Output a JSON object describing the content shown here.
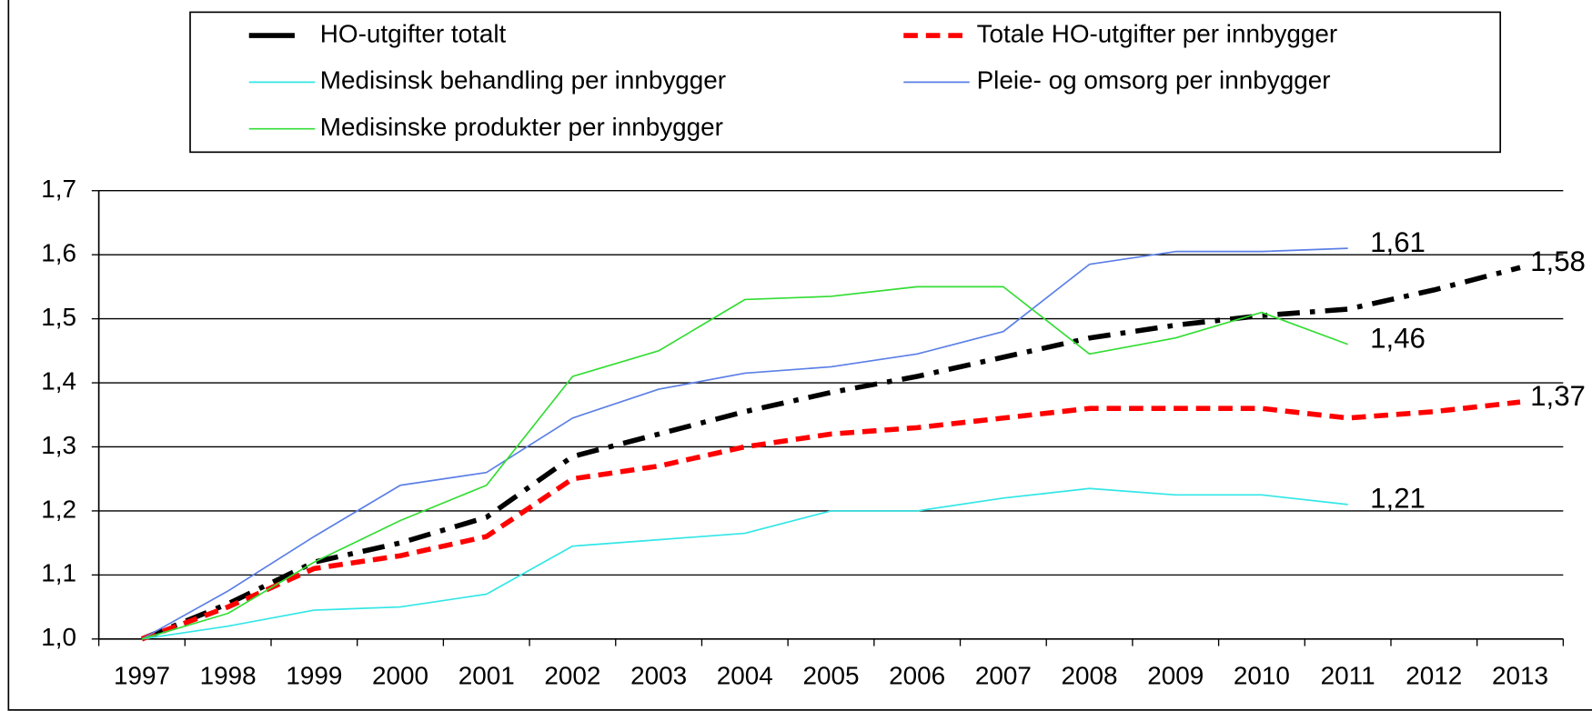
{
  "chart_data": {
    "type": "line",
    "categories": [
      "1997",
      "1998",
      "1999",
      "2000",
      "2001",
      "2002",
      "2003",
      "2004",
      "2005",
      "2006",
      "2007",
      "2008",
      "2009",
      "2010",
      "2011",
      "2012",
      "2013"
    ],
    "series": [
      {
        "name": "HO-utgifter totalt",
        "color": "#000000",
        "dash": "dashdot",
        "width": 5,
        "values": [
          1.0,
          1.055,
          1.12,
          1.15,
          1.19,
          1.285,
          1.32,
          1.355,
          1.385,
          1.41,
          1.44,
          1.47,
          1.49,
          1.505,
          1.515,
          1.545,
          1.58
        ],
        "value_labels": [
          null,
          null,
          null,
          null,
          null,
          null,
          null,
          null,
          null,
          null,
          null,
          null,
          null,
          null,
          null,
          null,
          "1,58"
        ]
      },
      {
        "name": "Totale HO-utgifter per innbygger",
        "color": "#ff0000",
        "dash": "dash",
        "width": 5,
        "values": [
          1.0,
          1.05,
          1.11,
          1.13,
          1.16,
          1.25,
          1.27,
          1.3,
          1.32,
          1.33,
          1.345,
          1.36,
          1.36,
          1.36,
          1.345,
          1.355,
          1.37
        ],
        "value_labels": [
          null,
          null,
          null,
          null,
          null,
          null,
          null,
          null,
          null,
          null,
          null,
          null,
          null,
          null,
          null,
          null,
          "1,37"
        ]
      },
      {
        "name": "Medisinsk behandling per innbygger",
        "color": "#33e6e6",
        "dash": "solid",
        "width": 1.5,
        "values": [
          1.0,
          1.02,
          1.045,
          1.05,
          1.07,
          1.145,
          1.155,
          1.165,
          1.2,
          1.2,
          1.22,
          1.235,
          1.225,
          1.225,
          1.21,
          null,
          null
        ],
        "value_labels": [
          null,
          null,
          null,
          null,
          null,
          null,
          null,
          null,
          null,
          null,
          null,
          null,
          null,
          null,
          "1,21",
          null,
          null
        ]
      },
      {
        "name": "Pleie- og omsorg per innbygger",
        "color": "#5b7fe6",
        "dash": "solid",
        "width": 1.5,
        "values": [
          1.0,
          1.075,
          1.16,
          1.24,
          1.26,
          1.345,
          1.39,
          1.415,
          1.425,
          1.445,
          1.48,
          1.585,
          1.605,
          1.605,
          1.61,
          null,
          null
        ],
        "value_labels": [
          null,
          null,
          null,
          null,
          null,
          null,
          null,
          null,
          null,
          null,
          null,
          null,
          null,
          null,
          "1,61",
          null,
          null
        ]
      },
      {
        "name": "Medisinske produkter per innbygger",
        "color": "#33dd33",
        "dash": "solid",
        "width": 1.5,
        "values": [
          1.0,
          1.04,
          1.12,
          1.185,
          1.24,
          1.41,
          1.45,
          1.53,
          1.535,
          1.55,
          1.55,
          1.445,
          1.47,
          1.51,
          1.46,
          null,
          null
        ],
        "value_labels": [
          null,
          null,
          null,
          null,
          null,
          null,
          null,
          null,
          null,
          null,
          null,
          null,
          null,
          null,
          "1,46",
          null,
          null
        ]
      }
    ],
    "ylim": [
      1.0,
      1.7
    ],
    "yticks": [
      {
        "value": 1.0,
        "label": "1,0"
      },
      {
        "value": 1.1,
        "label": "1,1"
      },
      {
        "value": 1.2,
        "label": "1,2"
      },
      {
        "value": 1.3,
        "label": "1,3"
      },
      {
        "value": 1.4,
        "label": "1,4"
      },
      {
        "value": 1.5,
        "label": "1,5"
      },
      {
        "value": 1.6,
        "label": "1,6"
      },
      {
        "value": 1.7,
        "label": "1,7"
      }
    ],
    "grid": true,
    "legend": "top"
  }
}
